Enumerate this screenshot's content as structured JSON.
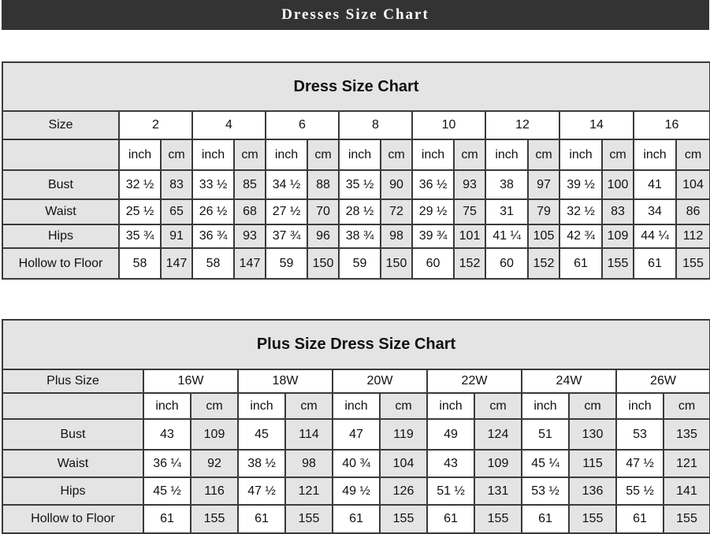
{
  "banner_title": "Dresses Size Chart",
  "dress_chart": {
    "title": "Dress Size Chart",
    "size_label": "Size",
    "sizes": [
      "2",
      "4",
      "6",
      "8",
      "10",
      "12",
      "14",
      "16"
    ],
    "units": {
      "inch": "inch",
      "cm": "cm"
    },
    "rows": [
      {
        "label": "Bust",
        "values": [
          "32 ½",
          "83",
          "33 ½",
          "85",
          "34 ½",
          "88",
          "35 ½",
          "90",
          "36 ½",
          "93",
          "38",
          "97",
          "39 ½",
          "100",
          "41",
          "104"
        ]
      },
      {
        "label": "Waist",
        "values": [
          "25 ½",
          "65",
          "26 ½",
          "68",
          "27 ½",
          "70",
          "28 ½",
          "72",
          "29 ½",
          "75",
          "31",
          "79",
          "32 ½",
          "83",
          "34",
          "86"
        ]
      },
      {
        "label": "Hips",
        "values": [
          "35 ¾",
          "91",
          "36 ¾",
          "93",
          "37 ¾",
          "96",
          "38 ¾",
          "98",
          "39 ¾",
          "101",
          "41 ¼",
          "105",
          "42 ¾",
          "109",
          "44 ¼",
          "112"
        ]
      },
      {
        "label": "Hollow to Floor",
        "values": [
          "58",
          "147",
          "58",
          "147",
          "59",
          "150",
          "59",
          "150",
          "60",
          "152",
          "60",
          "152",
          "61",
          "155",
          "61",
          "155"
        ]
      }
    ]
  },
  "plus_chart": {
    "title": "Plus Size Dress Size Chart",
    "size_label": "Plus Size",
    "sizes": [
      "16W",
      "18W",
      "20W",
      "22W",
      "24W",
      "26W"
    ],
    "units": {
      "inch": "inch",
      "cm": "cm"
    },
    "rows": [
      {
        "label": "Bust",
        "values": [
          "43",
          "109",
          "45",
          "114",
          "47",
          "119",
          "49",
          "124",
          "51",
          "130",
          "53",
          "135"
        ]
      },
      {
        "label": "Waist",
        "values": [
          "36 ¼",
          "92",
          "38 ½",
          "98",
          "40 ¾",
          "104",
          "43",
          "109",
          "45 ¼",
          "115",
          "47 ½",
          "121"
        ]
      },
      {
        "label": "Hips",
        "values": [
          "45 ½",
          "116",
          "47 ½",
          "121",
          "49 ½",
          "126",
          "51 ½",
          "131",
          "53 ½",
          "136",
          "55 ½",
          "141"
        ]
      },
      {
        "label": "Hollow to Floor",
        "values": [
          "61",
          "155",
          "61",
          "155",
          "61",
          "155",
          "61",
          "155",
          "61",
          "155",
          "61",
          "155"
        ]
      }
    ]
  }
}
